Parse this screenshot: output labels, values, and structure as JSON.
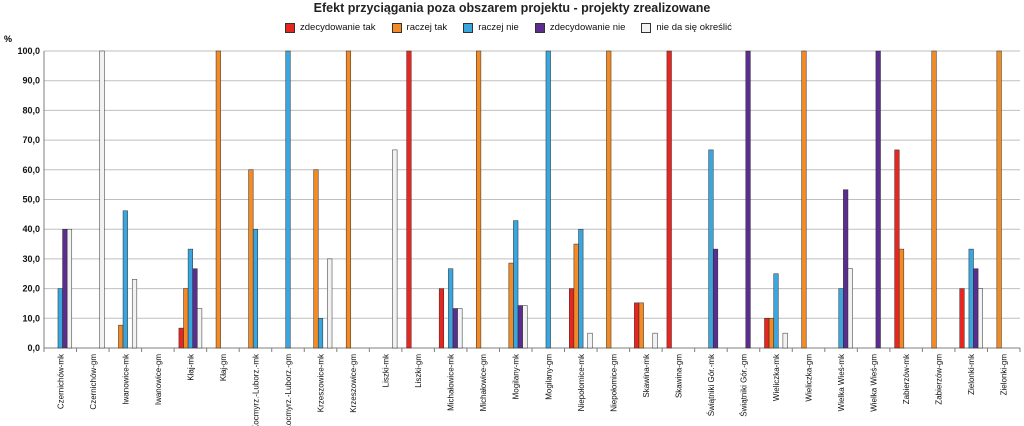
{
  "chart_data": {
    "type": "bar",
    "title": "Efekt przyciągania poza obszarem projektu - projekty zrealizowane",
    "ylabel": "%",
    "xlabel": "",
    "ylim": [
      0,
      100
    ],
    "yticks": [
      "0,0",
      "10,0",
      "20,0",
      "30,0",
      "40,0",
      "50,0",
      "60,0",
      "70,0",
      "80,0",
      "90,0",
      "100,0"
    ],
    "grid": true,
    "legend_position": "top",
    "categories": [
      "Czernichów-mk",
      "Czernichów-gm",
      "Iwanowice-mk",
      "Iwanowice-gm",
      "Kłaj-mk",
      "Kłaj-gm",
      "Kocmyrz.-Luborz.-mk",
      "Kocmyrz.-Luborz.-gm",
      "Krzeszowice-mk",
      "Krzeszowice-gm",
      "Liszki-mk",
      "Liszki-gm",
      "Michałowice-mk",
      "Michałowice-gm",
      "Mogilany-mk",
      "Mogilany-gm",
      "Niepołomice-mk",
      "Niepołomice-gm",
      "Skawina-mk",
      "Skawina-gm",
      "Świątniki Gór.-mk",
      "Świątniki Gór.-gm",
      "Wieliczka-mk",
      "Wieliczka-gm",
      "Wielka Wieś-mk",
      "Wielka Wieś-gm",
      "Zabierzów-mk",
      "Zabierzów-gm",
      "Zielonki-mk",
      "Zielonki-gm"
    ],
    "series": [
      {
        "name": "zdecydowanie tak",
        "color": "#e8261f",
        "values": [
          0,
          0,
          0,
          0,
          6.7,
          0,
          0,
          0,
          0,
          0,
          0,
          100,
          20,
          0,
          0,
          0,
          20,
          0,
          15.2,
          100,
          0,
          0,
          10,
          0,
          0,
          0,
          66.7,
          0,
          20,
          0
        ]
      },
      {
        "name": "raczej tak",
        "color": "#f28a26",
        "values": [
          0,
          0,
          7.7,
          0,
          20,
          100,
          60,
          0,
          60,
          100,
          0,
          0,
          0,
          100,
          28.6,
          0,
          35,
          100,
          15.2,
          0,
          0,
          0,
          10,
          100,
          0,
          0,
          33.3,
          100,
          0,
          100
        ]
      },
      {
        "name": "raczej nie",
        "color": "#3aa6dd",
        "values": [
          20,
          0,
          46.2,
          0,
          33.3,
          0,
          40,
          100,
          10,
          0,
          0,
          0,
          26.7,
          0,
          42.9,
          100,
          40,
          0,
          0,
          0,
          66.7,
          0,
          25,
          0,
          20,
          0,
          0,
          0,
          33.3,
          0
        ]
      },
      {
        "name": "zdecydowanie nie",
        "color": "#5b2d8e",
        "values": [
          40,
          0,
          0,
          0,
          26.7,
          0,
          0,
          0,
          0,
          0,
          0,
          0,
          13.3,
          0,
          14.3,
          0,
          0,
          0,
          0,
          0,
          33.3,
          100,
          0,
          0,
          53.3,
          100,
          0,
          0,
          26.7,
          0
        ]
      },
      {
        "name": "nie da się określić",
        "color": "#f2f2f2",
        "values": [
          40,
          100,
          23.1,
          0,
          13.3,
          0,
          0,
          0,
          30,
          0,
          66.7,
          0,
          13.3,
          0,
          14.3,
          0,
          5,
          0,
          5,
          0,
          0,
          0,
          5,
          0,
          26.7,
          0,
          0,
          0,
          20,
          0
        ]
      }
    ]
  }
}
